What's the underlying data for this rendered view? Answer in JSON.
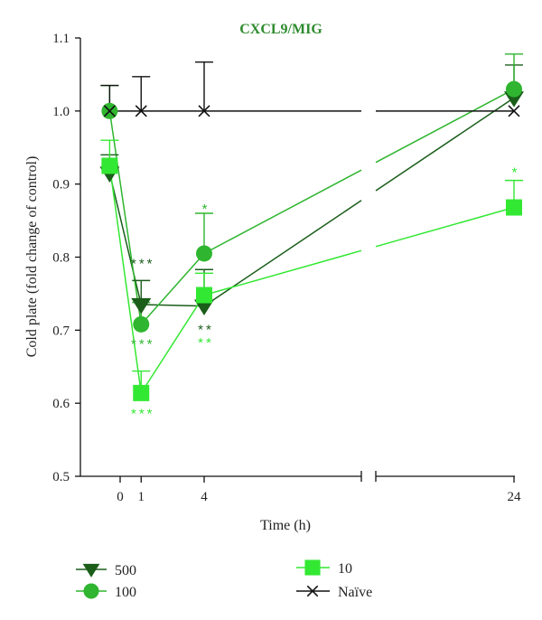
{
  "chart_data": {
    "type": "line",
    "title": "CXCL9/MIG",
    "xlabel": "Time (h)",
    "ylabel": "Cold plate (fold change of control)",
    "ylim": [
      0.5,
      1.1
    ],
    "yticks": [
      "0.5",
      "0.6",
      "0.7",
      "0.8",
      "0.9",
      "1.0",
      "1.1"
    ],
    "xticks": [
      "0",
      "1",
      "4",
      "24"
    ],
    "axis_break": true,
    "grid": false,
    "legend_position": "bottom",
    "colors": {
      "title": "#2e8b2e",
      "s500": "#1a5e1a",
      "s100": "#2fb52f",
      "s10": "#33e833",
      "naive": "#111111"
    },
    "series": [
      {
        "name": "500",
        "key": "s500",
        "marker": "triangle-down",
        "points": [
          {
            "x": -0.5,
            "y": 0.915,
            "err": 0.025
          },
          {
            "x": 1,
            "y": 0.735,
            "err": 0.033
          },
          {
            "x": 4,
            "y": 0.733,
            "err": 0.05
          },
          {
            "x": 24,
            "y": 1.018,
            "err": 0.045
          }
        ]
      },
      {
        "name": "100",
        "key": "s100",
        "marker": "circle",
        "points": [
          {
            "x": -0.5,
            "y": 1.0,
            "err": 0.035
          },
          {
            "x": 1,
            "y": 0.708,
            "err": 0.03
          },
          {
            "x": 4,
            "y": 0.805,
            "err": 0.055
          },
          {
            "x": 24,
            "y": 1.03,
            "err": 0.048
          }
        ]
      },
      {
        "name": "10",
        "key": "s10",
        "marker": "square",
        "points": [
          {
            "x": -0.5,
            "y": 0.925,
            "err": 0.035
          },
          {
            "x": 1,
            "y": 0.614,
            "err": 0.03
          },
          {
            "x": 4,
            "y": 0.748,
            "err": 0.03
          },
          {
            "x": 24,
            "y": 0.868,
            "err": 0.037
          }
        ]
      },
      {
        "name": "Naïve",
        "key": "naive",
        "marker": "x",
        "points": [
          {
            "x": -0.5,
            "y": 1.0,
            "err": 0.035
          },
          {
            "x": 1,
            "y": 1.0,
            "err": 0.047
          },
          {
            "x": 4,
            "y": 1.0,
            "err": 0.067
          },
          {
            "x": 24,
            "y": 1.0,
            "err": 0.0
          }
        ]
      }
    ],
    "annotations": [
      {
        "text": "***",
        "x": 1,
        "y": 0.785,
        "key": "s500"
      },
      {
        "text": "***",
        "x": 1,
        "y": 0.675,
        "key": "s100"
      },
      {
        "text": "***",
        "x": 1,
        "y": 0.58,
        "key": "s10"
      },
      {
        "text": "*",
        "x": 4,
        "y": 0.86,
        "key": "s100"
      },
      {
        "text": "**",
        "x": 4,
        "y": 0.695,
        "key": "s500"
      },
      {
        "text": "**",
        "x": 4,
        "y": 0.677,
        "key": "s10"
      },
      {
        "text": "*",
        "x": 24,
        "y": 0.91,
        "key": "s10"
      }
    ],
    "legend": [
      {
        "label": "500",
        "key": "s500",
        "marker": "triangle-down"
      },
      {
        "label": "100",
        "key": "s100",
        "marker": "circle"
      },
      {
        "label": "10",
        "key": "s10",
        "marker": "square"
      },
      {
        "label": "Naïve",
        "key": "naive",
        "marker": "x"
      }
    ]
  }
}
